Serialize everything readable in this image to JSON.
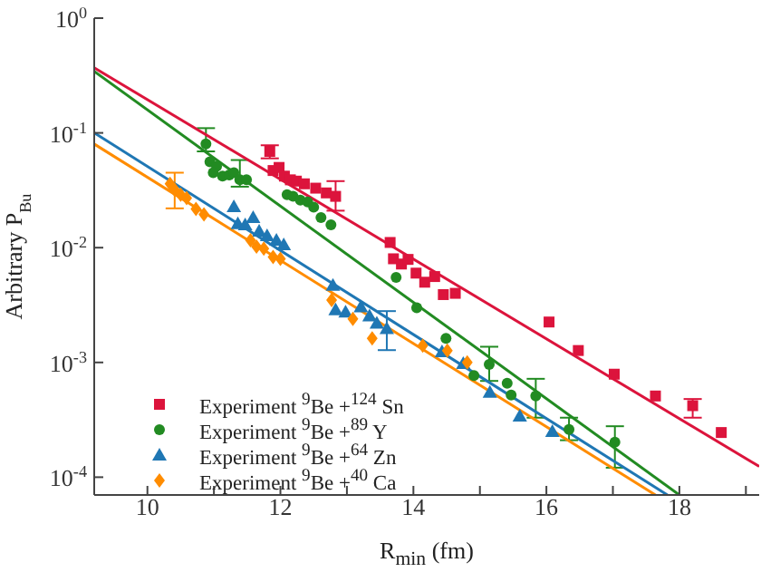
{
  "chart_data": {
    "type": "scatter",
    "xlabel": "R$_{min}$ (fm)",
    "ylabel": "Arbitrary P$_{Bu}$",
    "log": "y",
    "legend": "bottom left",
    "grid": false,
    "xlim": [
      9.2,
      19.2
    ],
    "xticks": [
      10,
      {
        "value": 11,
        "label": null
      },
      12,
      {
        "value": 13,
        "label": null
      },
      14,
      {
        "value": 15,
        "label": null
      },
      16,
      {
        "value": 17,
        "label": null
      },
      18,
      {
        "value": 19,
        "label": null
      }
    ],
    "ylim": [
      7e-05,
      1
    ],
    "yticks": [
      {
        "value": 0.0001,
        "label": "10$^{-4}$"
      },
      {
        "value": 0.001,
        "label": "10$^{-3}$"
      },
      {
        "value": 0.01,
        "label": "10$^{-2}$"
      },
      {
        "value": 0.1,
        "label": "10$^{-1}$"
      },
      {
        "value": 1,
        "label": "10$^{0}$"
      }
    ],
    "series": [
      {
        "name": "Experiment $^{9}$Be +$^{124}$ Sn",
        "color": "#dc143c",
        "marker": "square",
        "x": [
          11.84,
          11.89,
          11.98,
          12.06,
          12.15,
          12.24,
          12.36,
          12.53,
          12.69,
          12.83,
          13.65,
          13.7,
          13.82,
          13.92,
          14.04,
          14.17,
          14.32,
          14.45,
          14.63,
          16.04,
          16.48,
          17.02,
          17.64,
          18.2,
          18.63
        ],
        "values": [
          0.069,
          0.047,
          0.05,
          0.042,
          0.039,
          0.038,
          0.036,
          0.033,
          0.03,
          0.028,
          0.0111,
          0.008,
          0.0072,
          0.0079,
          0.006,
          0.005,
          0.0056,
          0.0039,
          0.004,
          0.00225,
          0.00127,
          0.00079,
          0.00051,
          0.00042,
          0.000245
        ],
        "errors": [
          [
            0.06,
            0.078
          ],
          null,
          null,
          null,
          null,
          null,
          null,
          null,
          null,
          [
            0.021,
            0.038
          ],
          null,
          null,
          null,
          null,
          null,
          null,
          null,
          null,
          null,
          null,
          null,
          null,
          null,
          [
            0.00033,
            0.00048
          ],
          null
        ]
      },
      {
        "name": "Experiment $^{9}$Be +$^{89}$ Y",
        "color": "#228b22",
        "marker": "circle",
        "x": [
          10.88,
          10.94,
          11.04,
          10.99,
          11.13,
          11.23,
          11.3,
          11.39,
          11.49,
          12.1,
          12.19,
          12.3,
          12.41,
          12.5,
          12.61,
          12.76,
          13.74,
          14.05,
          14.49,
          15.14,
          14.91,
          15.41,
          15.47,
          15.84,
          16.34,
          17.03
        ],
        "values": [
          0.08,
          0.056,
          0.051,
          0.045,
          0.042,
          0.043,
          0.045,
          0.039,
          0.039,
          0.029,
          0.028,
          0.026,
          0.025,
          0.0225,
          0.0183,
          0.0158,
          0.0055,
          0.003,
          0.00162,
          0.00096,
          0.00077,
          0.00066,
          0.00052,
          0.00051,
          0.00026,
          0.000202
        ],
        "errors": [
          [
            0.069,
            0.11
          ],
          null,
          null,
          null,
          null,
          null,
          null,
          [
            0.034,
            0.058
          ],
          null,
          null,
          null,
          null,
          null,
          null,
          null,
          null,
          null,
          null,
          null,
          [
            0.00069,
            0.00137
          ],
          null,
          null,
          null,
          [
            0.00033,
            0.00072
          ],
          [
            0.00021,
            0.00033
          ],
          [
            0.000121,
            0.000278
          ]
        ]
      },
      {
        "name": "Experiment $^{9}$Be +$^{64}$ Zn",
        "color": "#1f77b4",
        "marker": "triangle",
        "x": [
          11.3,
          11.36,
          11.47,
          11.59,
          11.68,
          11.8,
          11.94,
          12.05,
          12.79,
          12.83,
          12.98,
          13.21,
          13.34,
          13.45,
          13.6,
          14.43,
          14.75,
          15.15,
          15.6,
          16.09
        ],
        "values": [
          0.0228,
          0.0162,
          0.0158,
          0.0183,
          0.0139,
          0.0127,
          0.0116,
          0.0106,
          0.0047,
          0.00287,
          0.00274,
          0.00305,
          0.00254,
          0.0022,
          0.00197,
          0.00124,
          0.00098,
          0.00055,
          0.00034,
          0.00025
        ],
        "errors": [
          null,
          null,
          null,
          null,
          null,
          null,
          null,
          null,
          null,
          null,
          null,
          null,
          null,
          null,
          [
            0.00128,
            0.0028
          ],
          null,
          null,
          null,
          null,
          null
        ]
      },
      {
        "name": "Experiment $^{9}$Be +$^{40}$ Ca",
        "color": "#ff8c00",
        "marker": "diamond",
        "x": [
          10.34,
          10.41,
          10.5,
          10.59,
          10.73,
          10.85,
          11.55,
          11.64,
          11.75,
          11.89,
          12.0,
          12.77,
          13.09,
          13.38,
          14.14,
          14.51,
          14.81
        ],
        "values": [
          0.036,
          0.032,
          0.029,
          0.027,
          0.0217,
          0.0195,
          0.0116,
          0.0102,
          0.0098,
          0.0083,
          0.008,
          0.0035,
          0.0024,
          0.00162,
          0.0014,
          0.00127,
          0.001
        ],
        "errors": [
          null,
          [
            0.022,
            0.045
          ],
          null,
          null,
          null,
          null,
          null,
          null,
          null,
          null,
          null,
          null,
          null,
          null,
          null,
          null,
          null
        ]
      },
      {
        "type": "line",
        "color": "#dc143c",
        "marker": "none",
        "x": [
          9.2,
          19.2
        ],
        "values": [
          0.37,
          0.000124
        ]
      },
      {
        "type": "line",
        "color": "#228b22",
        "marker": "none",
        "x": [
          9.2,
          18
        ],
        "values": [
          0.344,
          7e-05
        ]
      },
      {
        "type": "line",
        "color": "#1f77b4",
        "marker": "none",
        "x": [
          9.2,
          17.82
        ],
        "values": [
          0.1,
          7e-05
        ]
      },
      {
        "type": "line",
        "color": "#ff8c00",
        "marker": "none",
        "x": [
          9.2,
          17.64
        ],
        "values": [
          0.08,
          7e-05
        ]
      }
    ]
  }
}
